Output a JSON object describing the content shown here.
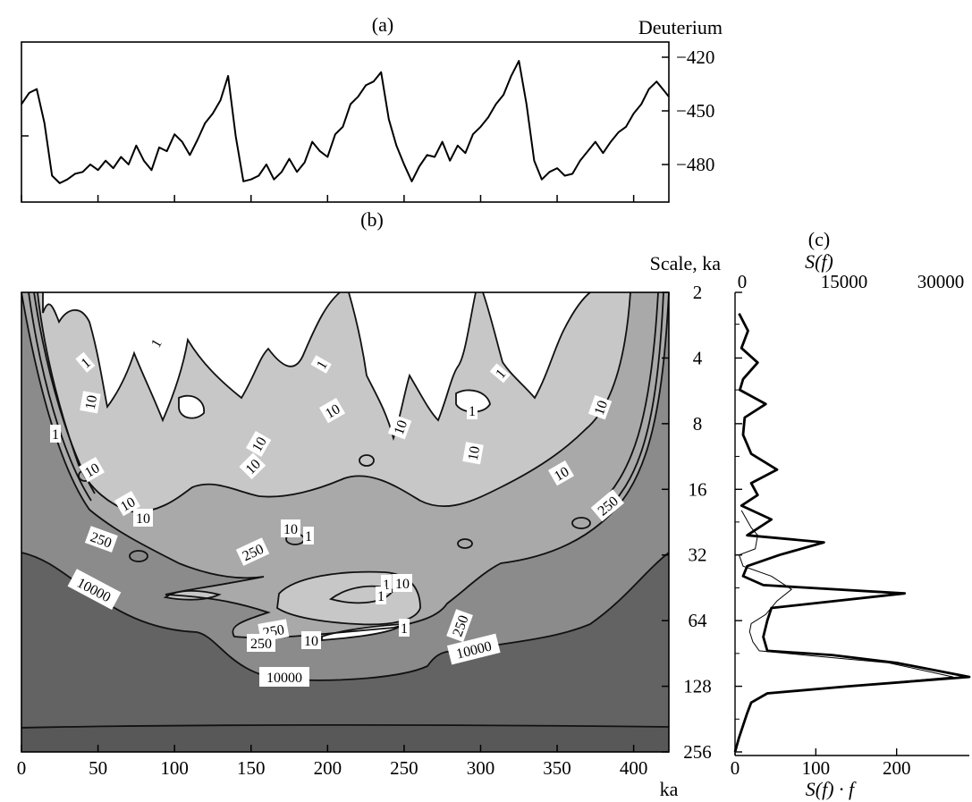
{
  "panel_a": {
    "label": "(a)",
    "ylabel": "Deuterium",
    "yticks": [
      {
        "v": -420,
        "label": "−420"
      },
      {
        "v": -450,
        "label": "−450"
      },
      {
        "v": -480,
        "label": "−480"
      }
    ]
  },
  "panel_b": {
    "label": "(b)",
    "ylabel": "Scale, ka",
    "xlabel": "ka",
    "xticks": [
      "0",
      "50",
      "100",
      "150",
      "200",
      "250",
      "300",
      "350",
      "400"
    ],
    "yticks": [
      "2",
      "4",
      "8",
      "16",
      "32",
      "64",
      "128",
      "256"
    ],
    "contour_labels": [
      "1",
      "10",
      "250",
      "10000"
    ]
  },
  "panel_c": {
    "label": "(c)",
    "top_axis_title": "S(f)",
    "top_ticks": [
      "0",
      "15000",
      "30000"
    ],
    "bottom_axis_title": "S(f) · f",
    "bottom_ticks": [
      "0",
      "100",
      "200"
    ]
  },
  "chart_data": [
    {
      "id": "a",
      "type": "line",
      "ylabel": "Deuterium",
      "ylim": [
        -492,
        -407
      ],
      "xlim": [
        0,
        423
      ],
      "x": [
        0,
        5,
        10,
        15,
        20,
        25,
        30,
        35,
        40,
        45,
        50,
        55,
        60,
        65,
        70,
        75,
        80,
        85,
        90,
        95,
        100,
        105,
        110,
        115,
        120,
        125,
        130,
        135,
        140,
        145,
        150,
        155,
        160,
        165,
        170,
        175,
        180,
        185,
        190,
        195,
        200,
        205,
        210,
        215,
        220,
        225,
        230,
        235,
        240,
        245,
        250,
        255,
        260,
        265,
        270,
        275,
        280,
        285,
        290,
        295,
        300,
        305,
        310,
        315,
        320,
        325,
        330,
        335,
        340,
        345,
        350,
        355,
        360,
        365,
        370,
        375,
        380,
        385,
        390,
        395,
        400,
        405,
        410,
        415,
        420,
        423
      ],
      "y": [
        -440,
        -434,
        -432,
        -450,
        -478,
        -482,
        -480,
        -477,
        -476,
        -472,
        -475,
        -470,
        -474,
        -468,
        -472,
        -462,
        -470,
        -475,
        -463,
        -465,
        -456,
        -460,
        -467,
        -459,
        -450,
        -445,
        -438,
        -425,
        -457,
        -481,
        -480,
        -478,
        -472,
        -480,
        -476,
        -469,
        -476,
        -471,
        -460,
        -465,
        -468,
        -456,
        -452,
        -440,
        -436,
        -430,
        -428,
        -423,
        -448,
        -462,
        -472,
        -481,
        -473,
        -467,
        -468,
        -460,
        -470,
        -462,
        -466,
        -456,
        -452,
        -447,
        -440,
        -435,
        -425,
        -417,
        -440,
        -470,
        -480,
        -476,
        -474,
        -478,
        -477,
        -470,
        -465,
        -460,
        -466,
        -460,
        -455,
        -452,
        -445,
        -440,
        -432,
        -428,
        -433,
        -436
      ]
    },
    {
      "id": "b",
      "type": "heatmap",
      "xlabel": "ka",
      "ylabel": "Scale, ka",
      "xlim": [
        0,
        423
      ],
      "ylim": [
        2,
        256
      ],
      "y_scale": "log2",
      "contour_levels": [
        1,
        10,
        250,
        10000
      ]
    },
    {
      "id": "c",
      "type": "line",
      "ylim_scale_ka": [
        2,
        256
      ],
      "series": [
        {
          "axis": "S(f) · f",
          "xlim": [
            0,
            290
          ],
          "scale_ka": [
            2.5,
            3,
            3.6,
            4.2,
            5,
            5.6,
            6.5,
            7.5,
            9,
            11,
            13,
            15,
            17,
            19,
            22,
            26,
            28,
            32,
            36,
            40,
            44,
            48,
            56,
            64,
            76,
            88,
            92,
            100,
            116,
            128,
            138,
            152,
            170,
            220,
            256
          ],
          "values": [
            5,
            16,
            8,
            28,
            10,
            6,
            38,
            12,
            10,
            20,
            52,
            20,
            28,
            8,
            45,
            15,
            110,
            55,
            15,
            10,
            35,
            210,
            45,
            40,
            35,
            40,
            120,
            200,
            290,
            140,
            40,
            20,
            15,
            5,
            0
          ]
        },
        {
          "axis": "S(f) · f",
          "xlim": [
            0,
            290
          ],
          "scale_ka": [
            20,
            24,
            26,
            30,
            32,
            36,
            40,
            46,
            52,
            60,
            66,
            72,
            80,
            88,
            92,
            100,
            116,
            128,
            138,
            152,
            170,
            220,
            256
          ],
          "values": [
            8,
            20,
            28,
            25,
            5,
            10,
            45,
            70,
            52,
            38,
            20,
            18,
            22,
            30,
            85,
            190,
            270,
            140,
            40,
            20,
            15,
            5,
            0
          ]
        }
      ]
    }
  ]
}
